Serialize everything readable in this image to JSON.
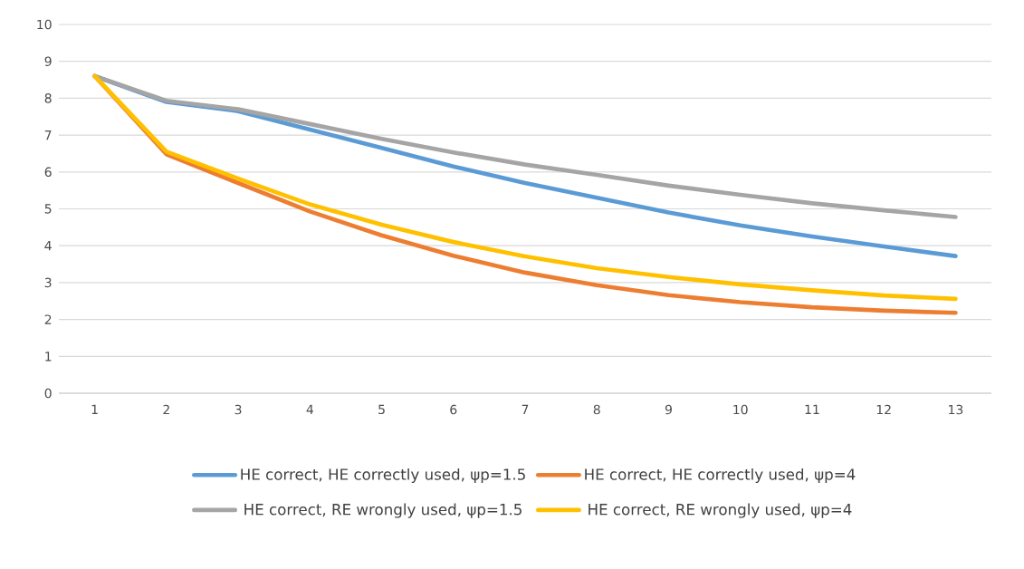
{
  "chart_data": {
    "type": "line",
    "categories": [
      "1",
      "2",
      "3",
      "4",
      "5",
      "6",
      "7",
      "8",
      "9",
      "10",
      "11",
      "12",
      "13"
    ],
    "series": [
      {
        "name": "HE correct, HE correctly used, ψp=1.5",
        "color": "#5b9bd5",
        "values": [
          8.6,
          7.9,
          7.65,
          7.15,
          6.65,
          6.15,
          5.7,
          5.3,
          4.9,
          4.55,
          4.25,
          3.98,
          3.72
        ]
      },
      {
        "name": "HE correct, HE correctly used, ψp=4",
        "color": "#ed7d31",
        "values": [
          8.6,
          6.48,
          5.7,
          4.93,
          4.28,
          3.73,
          3.27,
          2.93,
          2.66,
          2.47,
          2.33,
          2.24,
          2.18
        ]
      },
      {
        "name": "HE correct, RE wrongly used, ψp=1.5",
        "color": "#a5a5a5",
        "values": [
          8.6,
          7.93,
          7.7,
          7.3,
          6.9,
          6.53,
          6.2,
          5.92,
          5.63,
          5.38,
          5.15,
          4.96,
          4.78
        ]
      },
      {
        "name": "HE correct, RE wrongly used, ψp=4",
        "color": "#ffc000",
        "values": [
          8.6,
          6.55,
          5.82,
          5.12,
          4.57,
          4.1,
          3.71,
          3.39,
          3.15,
          2.95,
          2.79,
          2.65,
          2.56
        ]
      }
    ],
    "ylim": [
      0,
      10
    ],
    "yticks": [
      0,
      1,
      2,
      3,
      4,
      5,
      6,
      7,
      8,
      9,
      10
    ],
    "grid": "y",
    "legend": "bottom",
    "marker": "none",
    "line_style": "solid"
  }
}
